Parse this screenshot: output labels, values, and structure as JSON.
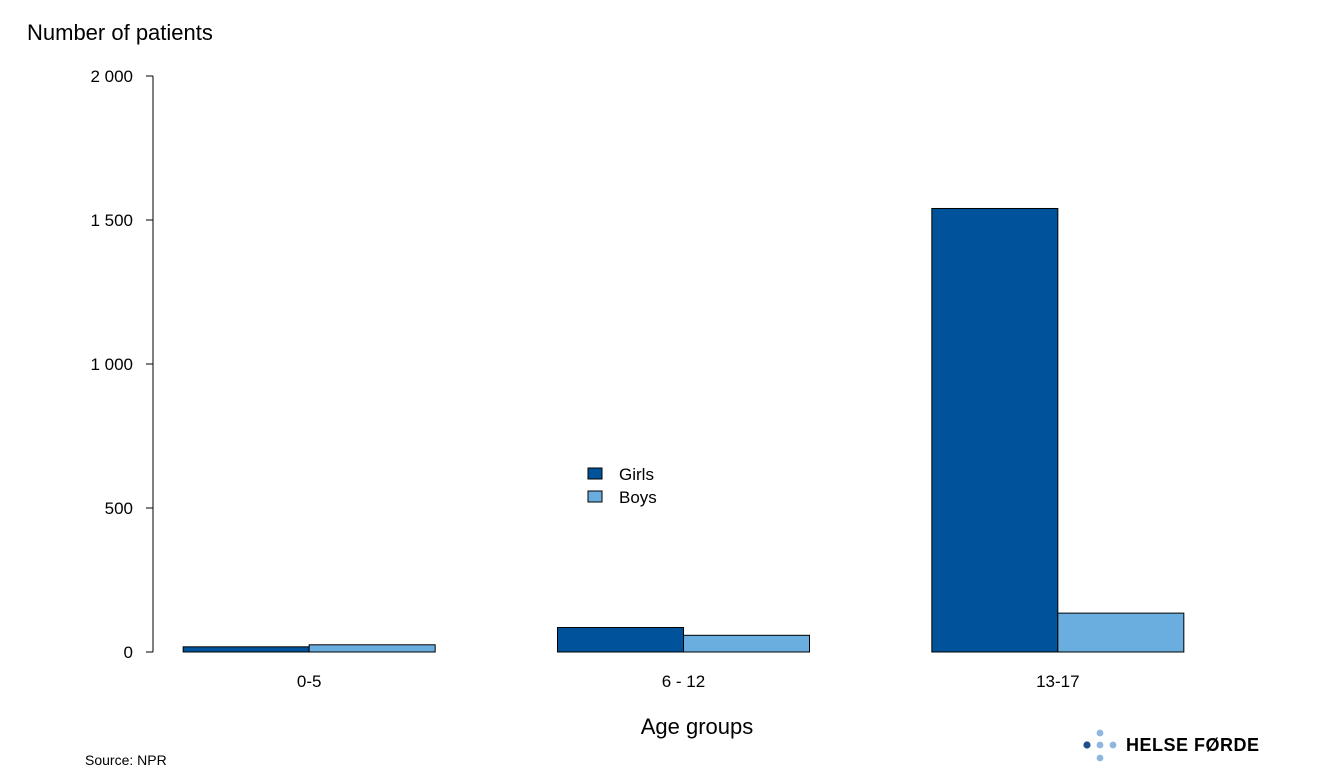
{
  "chart_data": {
    "type": "bar",
    "title": "",
    "ylabel": "Number of patients",
    "xlabel": "Age groups",
    "categories": [
      "0-5",
      "6 - 12",
      "13-17"
    ],
    "series": [
      {
        "name": "Girls",
        "color": "#00539b",
        "values": [
          18,
          85,
          1540
        ]
      },
      {
        "name": "Boys",
        "color": "#6aaee0",
        "values": [
          25,
          58,
          135
        ]
      }
    ],
    "ylim": [
      0,
      2000
    ],
    "yticks": [
      0,
      500,
      1000,
      1500,
      2000
    ],
    "ytick_labels": [
      "0",
      "500",
      "1 000",
      "1 500",
      "2 000"
    ],
    "grid": false,
    "legend_position": "center"
  },
  "source": "Source: NPR",
  "logo": {
    "text": "HELSE FØRDE",
    "icon": "helse-forde-dots-logo",
    "colors": [
      "#1f4f8f",
      "#8fb6df"
    ]
  }
}
